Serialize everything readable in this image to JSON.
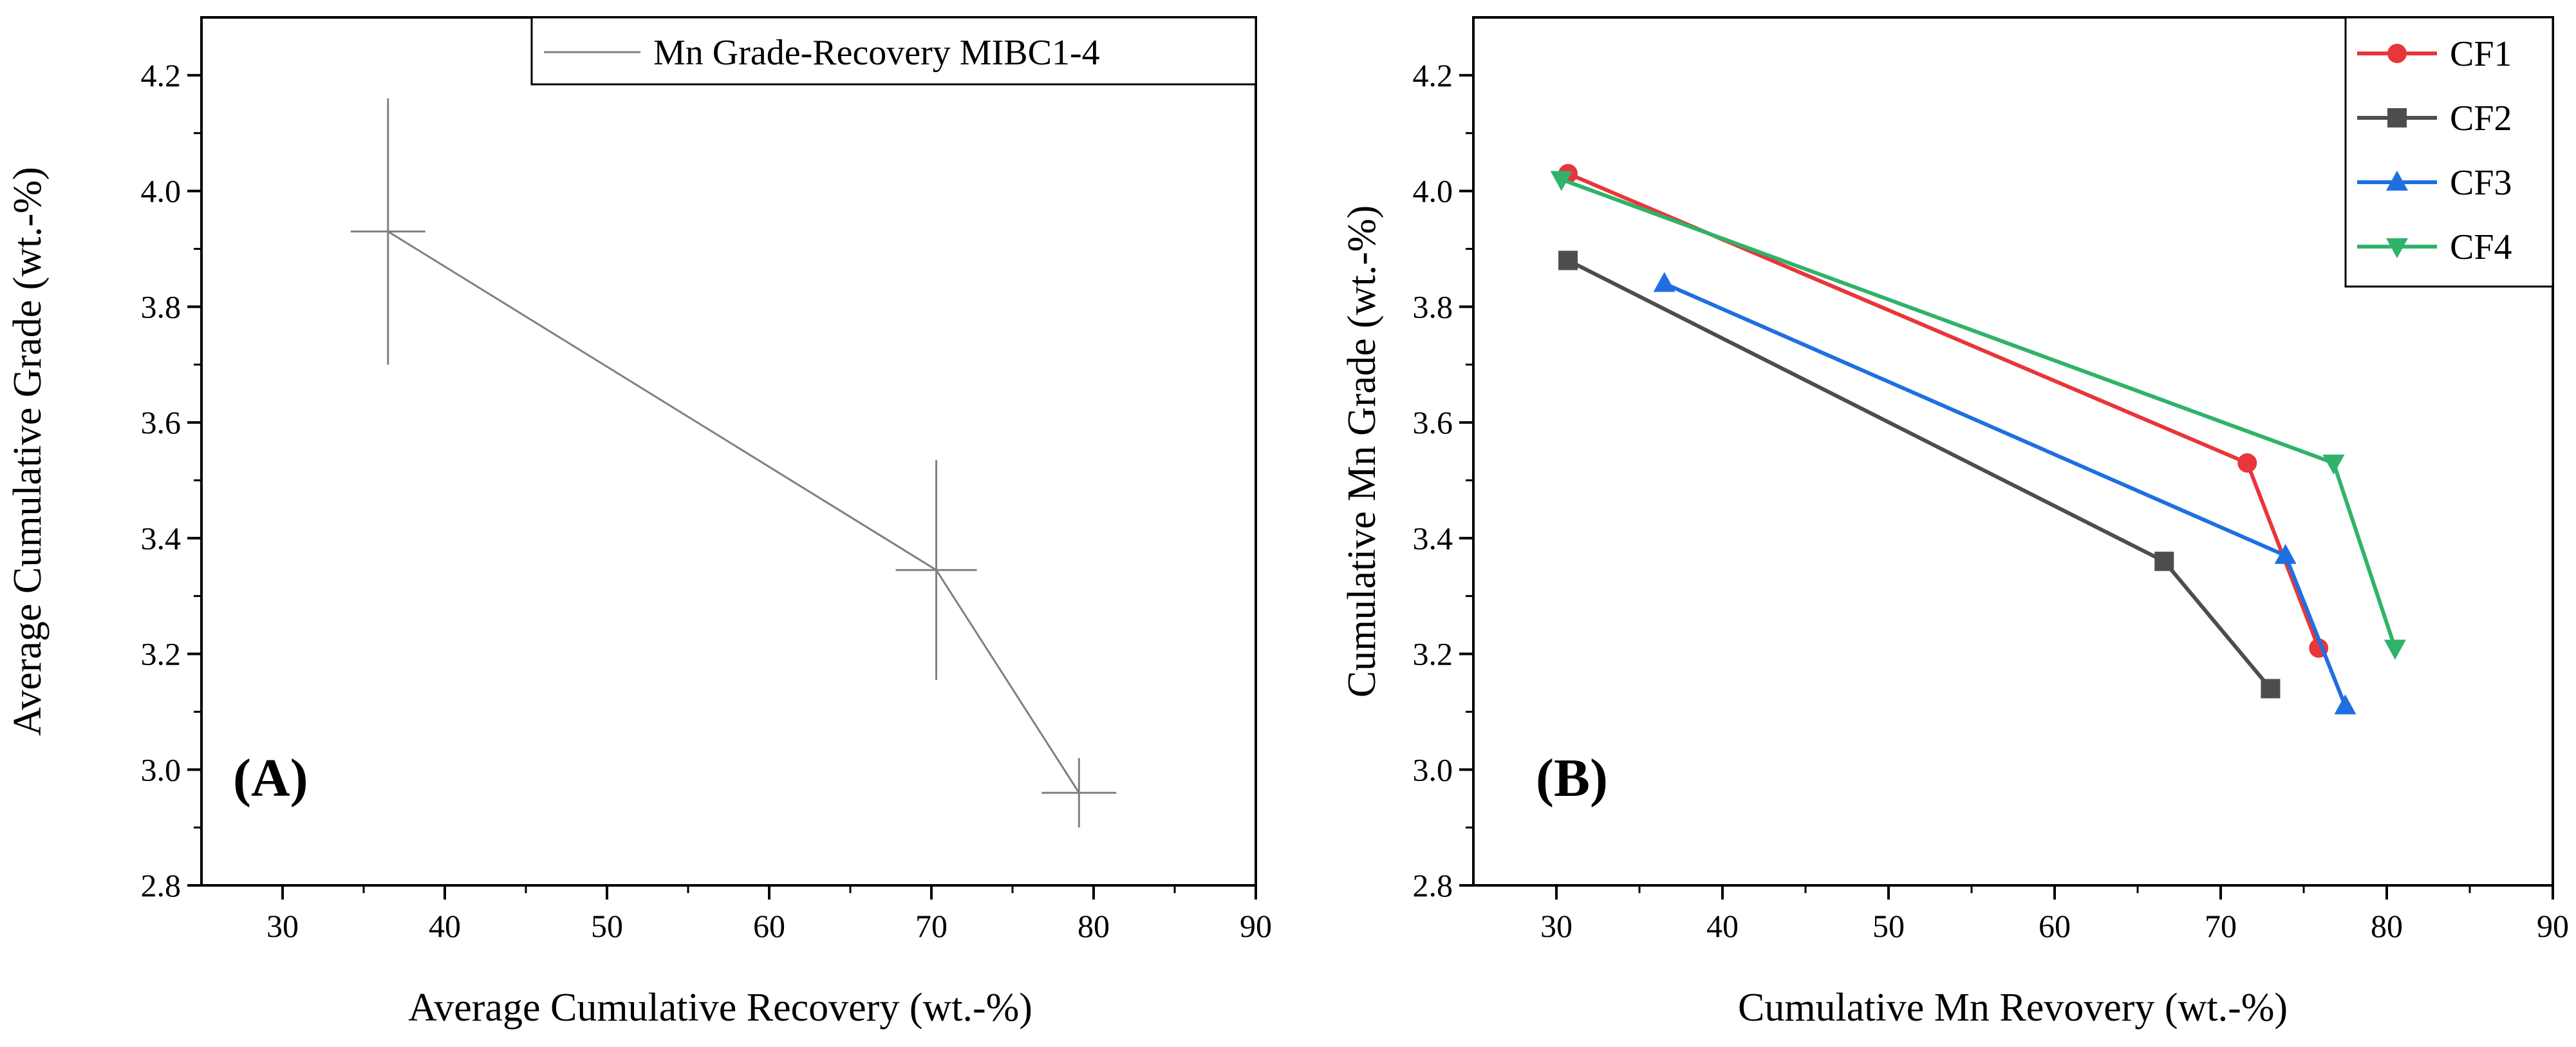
{
  "chart_data": [
    {
      "panel": "A",
      "type": "line",
      "panel_label": "(A)",
      "xlabel": "Average Cumulative Recovery (wt.-%)",
      "ylabel": "Average Cumulative Grade (wt.-%)",
      "xlim": [
        25,
        90
      ],
      "ylim": [
        2.8,
        4.3
      ],
      "xticks": [
        30,
        40,
        50,
        60,
        70,
        80,
        90
      ],
      "yticks": [
        2.8,
        3.0,
        3.2,
        3.4,
        3.6,
        3.8,
        4.0,
        4.2
      ],
      "legend_position": "top-right",
      "series": [
        {
          "name": "Mn Grade-Recovery MIBC1-4",
          "color": "#808080",
          "x": [
            36.5,
            70.3,
            79.1
          ],
          "y": [
            3.93,
            3.345,
            2.96
          ],
          "x_err": [
            2.3,
            2.5,
            2.3
          ],
          "y_err": [
            0.23,
            0.19,
            0.06
          ]
        }
      ]
    },
    {
      "panel": "B",
      "type": "line",
      "panel_label": "(B)",
      "xlabel": "Cumulative Mn Revovery (wt.-%)",
      "ylabel": "Cumulative Mn Grade (wt.-%)",
      "xlim": [
        25,
        90
      ],
      "ylim": [
        2.8,
        4.3
      ],
      "xticks": [
        30,
        40,
        50,
        60,
        70,
        80,
        90
      ],
      "yticks": [
        2.8,
        3.0,
        3.2,
        3.4,
        3.6,
        3.8,
        4.0,
        4.2
      ],
      "legend_position": "top-right",
      "series": [
        {
          "name": "CF1",
          "color": "#e8363a",
          "marker": "circle",
          "x": [
            30.7,
            71.6,
            75.9
          ],
          "y": [
            4.03,
            3.53,
            3.21
          ]
        },
        {
          "name": "CF2",
          "color": "#4d4d4d",
          "marker": "square",
          "x": [
            30.7,
            66.6,
            73.0
          ],
          "y": [
            3.88,
            3.36,
            3.14
          ]
        },
        {
          "name": "CF3",
          "color": "#1f6fe0",
          "marker": "triangle-up",
          "x": [
            36.5,
            73.9,
            77.5
          ],
          "y": [
            3.84,
            3.37,
            3.11
          ]
        },
        {
          "name": "CF4",
          "color": "#2fb36a",
          "marker": "triangle-down",
          "x": [
            30.3,
            76.8,
            80.5
          ],
          "y": [
            4.02,
            3.53,
            3.21
          ]
        }
      ]
    }
  ]
}
